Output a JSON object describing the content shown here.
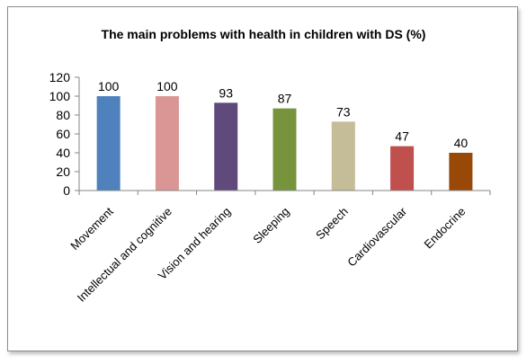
{
  "chart_data": {
    "type": "bar",
    "title": "The main problems with health in children with DS (%)",
    "xlabel": "",
    "ylabel": "",
    "categories": [
      "Movement",
      "Intellectual and cognitive",
      "Vision and hearing",
      "Sleeping",
      "Speech",
      "Cardiovascular",
      "Endocrine"
    ],
    "values": [
      100,
      100,
      93,
      87,
      73,
      47,
      40
    ],
    "colors": [
      "#4f81bd",
      "#d99694",
      "#604a7b",
      "#77933c",
      "#c4bd97",
      "#c0504d",
      "#984807"
    ],
    "ylim": [
      0,
      120
    ],
    "yticks": [
      0,
      20,
      40,
      60,
      80,
      100,
      120
    ],
    "grid": false,
    "legend": "none",
    "data_labels": true
  }
}
